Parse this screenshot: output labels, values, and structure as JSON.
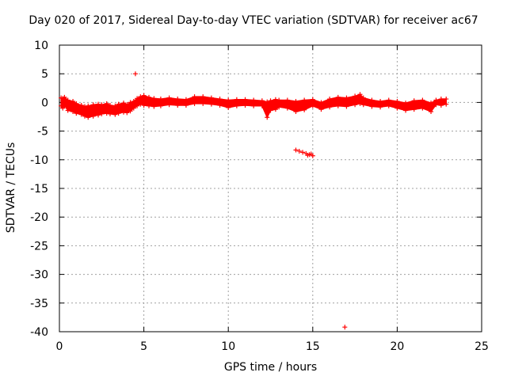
{
  "chart_data": {
    "type": "scatter",
    "title": "Day 020 of 2017, Sidereal Day-to-day VTEC variation (SDTVAR) for receiver ac67",
    "xlabel": "GPS time / hours",
    "ylabel": "SDTVAR / TECUs",
    "xlim": [
      0,
      25
    ],
    "ylim": [
      -40,
      10
    ],
    "xticks": [
      0,
      5,
      10,
      15,
      20,
      25
    ],
    "yticks": [
      10,
      5,
      0,
      -5,
      -10,
      -15,
      -20,
      -25,
      -30,
      -35,
      -40
    ],
    "grid": true,
    "marker": "+",
    "color": "#ff0000",
    "series": [
      {
        "name": "SDTVAR",
        "band": [
          [
            0.1,
            -0.6,
            0.8
          ],
          [
            0.2,
            -1.0,
            0.7
          ],
          [
            0.3,
            -0.5,
            0.9
          ],
          [
            0.5,
            -1.4,
            0.4
          ],
          [
            0.8,
            -1.6,
            0.2
          ],
          [
            1.0,
            -1.9,
            -0.2
          ],
          [
            1.3,
            -2.1,
            -0.5
          ],
          [
            1.5,
            -2.4,
            -0.7
          ],
          [
            1.7,
            -2.6,
            -0.6
          ],
          [
            2.0,
            -2.4,
            -0.4
          ],
          [
            2.3,
            -2.2,
            -0.3
          ],
          [
            2.5,
            -2.0,
            -0.4
          ],
          [
            2.8,
            -1.9,
            -0.2
          ],
          [
            3.0,
            -2.0,
            -0.5
          ],
          [
            3.3,
            -2.1,
            -0.6
          ],
          [
            3.5,
            -1.9,
            -0.3
          ],
          [
            3.8,
            -1.7,
            -0.1
          ],
          [
            4.0,
            -1.8,
            -0.4
          ],
          [
            4.2,
            -1.5,
            0.0
          ],
          [
            4.4,
            -1.0,
            0.2
          ],
          [
            4.6,
            -0.6,
            0.7
          ],
          [
            4.8,
            -0.3,
            1.0
          ],
          [
            5.0,
            -0.5,
            1.2
          ],
          [
            5.3,
            -0.6,
            0.9
          ],
          [
            5.6,
            -0.7,
            0.7
          ],
          [
            6.0,
            -0.6,
            0.6
          ],
          [
            6.5,
            -0.4,
            0.8
          ],
          [
            7.0,
            -0.5,
            0.6
          ],
          [
            7.5,
            -0.5,
            0.5
          ],
          [
            8.0,
            -0.2,
            1.0
          ],
          [
            8.5,
            -0.2,
            1.0
          ],
          [
            9.0,
            -0.3,
            0.8
          ],
          [
            9.5,
            -0.5,
            0.6
          ],
          [
            10.0,
            -0.9,
            0.4
          ],
          [
            10.5,
            -0.6,
            0.5
          ],
          [
            11.0,
            -0.5,
            0.5
          ],
          [
            11.5,
            -0.6,
            0.4
          ],
          [
            12.0,
            -0.6,
            0.3
          ],
          [
            12.3,
            -2.6,
            0.1
          ],
          [
            12.5,
            -1.4,
            0.3
          ],
          [
            12.8,
            -1.2,
            0.5
          ],
          [
            13.0,
            -0.8,
            0.4
          ],
          [
            13.5,
            -1.0,
            0.4
          ],
          [
            14.0,
            -1.6,
            0.2
          ],
          [
            14.5,
            -1.3,
            0.4
          ],
          [
            15.0,
            -0.6,
            0.5
          ],
          [
            15.5,
            -1.2,
            0.0
          ],
          [
            16.0,
            -0.8,
            0.6
          ],
          [
            16.5,
            -0.6,
            0.9
          ],
          [
            17.0,
            -0.7,
            0.8
          ],
          [
            17.5,
            -0.4,
            1.1
          ],
          [
            17.8,
            -0.2,
            1.4
          ],
          [
            18.0,
            -0.4,
            0.8
          ],
          [
            18.5,
            -0.7,
            0.4
          ],
          [
            19.0,
            -0.8,
            0.2
          ],
          [
            19.5,
            -0.6,
            0.4
          ],
          [
            20.0,
            -1.0,
            0.2
          ],
          [
            20.5,
            -1.4,
            -0.1
          ],
          [
            21.0,
            -1.2,
            0.3
          ],
          [
            21.5,
            -1.0,
            0.4
          ],
          [
            22.0,
            -1.6,
            -0.1
          ],
          [
            22.3,
            -0.4,
            0.4
          ],
          [
            22.6,
            -0.5,
            0.6
          ],
          [
            22.9,
            -0.3,
            0.6
          ]
        ],
        "outliers": [
          [
            4.5,
            5.0
          ],
          [
            16.9,
            -39.2
          ],
          [
            14.0,
            -8.3
          ],
          [
            14.2,
            -8.5
          ],
          [
            14.4,
            -8.7
          ],
          [
            14.6,
            -8.9
          ],
          [
            14.8,
            -9.1
          ],
          [
            15.0,
            -9.3
          ],
          [
            14.9,
            -9.0
          ],
          [
            14.7,
            -9.2
          ]
        ]
      }
    ]
  }
}
